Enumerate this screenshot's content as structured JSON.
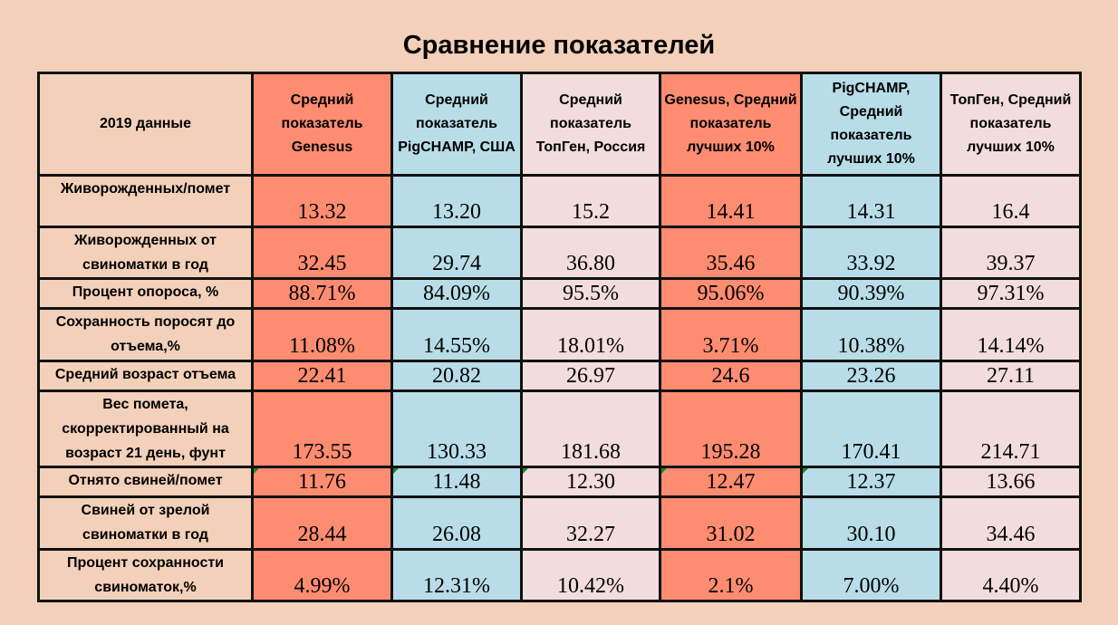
{
  "title": "Сравнение показателей",
  "colors": {
    "background": "#f3d0b9",
    "genesus": "#fe8c71",
    "pigchamp": "#b8dde8",
    "topgen": "#f2dcdc"
  },
  "header": {
    "label": "2019 данные",
    "columns": [
      "Средний показатель Genesus",
      "Средний показатель PigCHAMP, США",
      "Средний показатель ТопГен, Россия",
      "Genesus, Средний показатель лучших 10%",
      "PigCHAMP, Средний показатель лучших 10%",
      "ТопГен, Средний показатель лучших 10%"
    ]
  },
  "rows": [
    {
      "label": "Живорожденных/помет",
      "values": [
        "13.32",
        "13.20",
        "15.2",
        "14.41",
        "14.31",
        "16.4"
      ]
    },
    {
      "label": "Живорожденных от свиноматки в год",
      "values": [
        "32.45",
        "29.74",
        "36.80",
        "35.46",
        "33.92",
        "39.37"
      ]
    },
    {
      "label": "Процент опороса, %",
      "values": [
        "88.71%",
        "84.09%",
        "95.5%",
        "95.06%",
        "90.39%",
        "97.31%"
      ]
    },
    {
      "label": "Сохранность поросят до отъема,%",
      "values": [
        "11.08%",
        "14.55%",
        "18.01%",
        "3.71%",
        "10.38%",
        "14.14%"
      ]
    },
    {
      "label": "Средний возраст отъема",
      "values": [
        "22.41",
        "20.82",
        "26.97",
        "24.6",
        "23.26",
        "27.11"
      ]
    },
    {
      "label": "Вес помета, скорректированный на возраст 21 день, фунт",
      "values": [
        "173.55",
        "130.33",
        "181.68",
        "195.28",
        "170.41",
        "214.71"
      ]
    },
    {
      "label": "Отнято свиней/помет",
      "values": [
        "11.76",
        "11.48",
        "12.30",
        "12.47",
        "12.37",
        "13.66"
      ]
    },
    {
      "label": "Свиней от зрелой свиноматки в год",
      "values": [
        "28.44",
        "26.08",
        "32.27",
        "31.02",
        "30.10",
        "34.46"
      ]
    },
    {
      "label": "Процент сохранности свиноматок,%",
      "values": [
        "4.99%",
        "12.31%",
        "10.42%",
        "2.1%",
        "7.00%",
        "4.40%"
      ]
    }
  ]
}
